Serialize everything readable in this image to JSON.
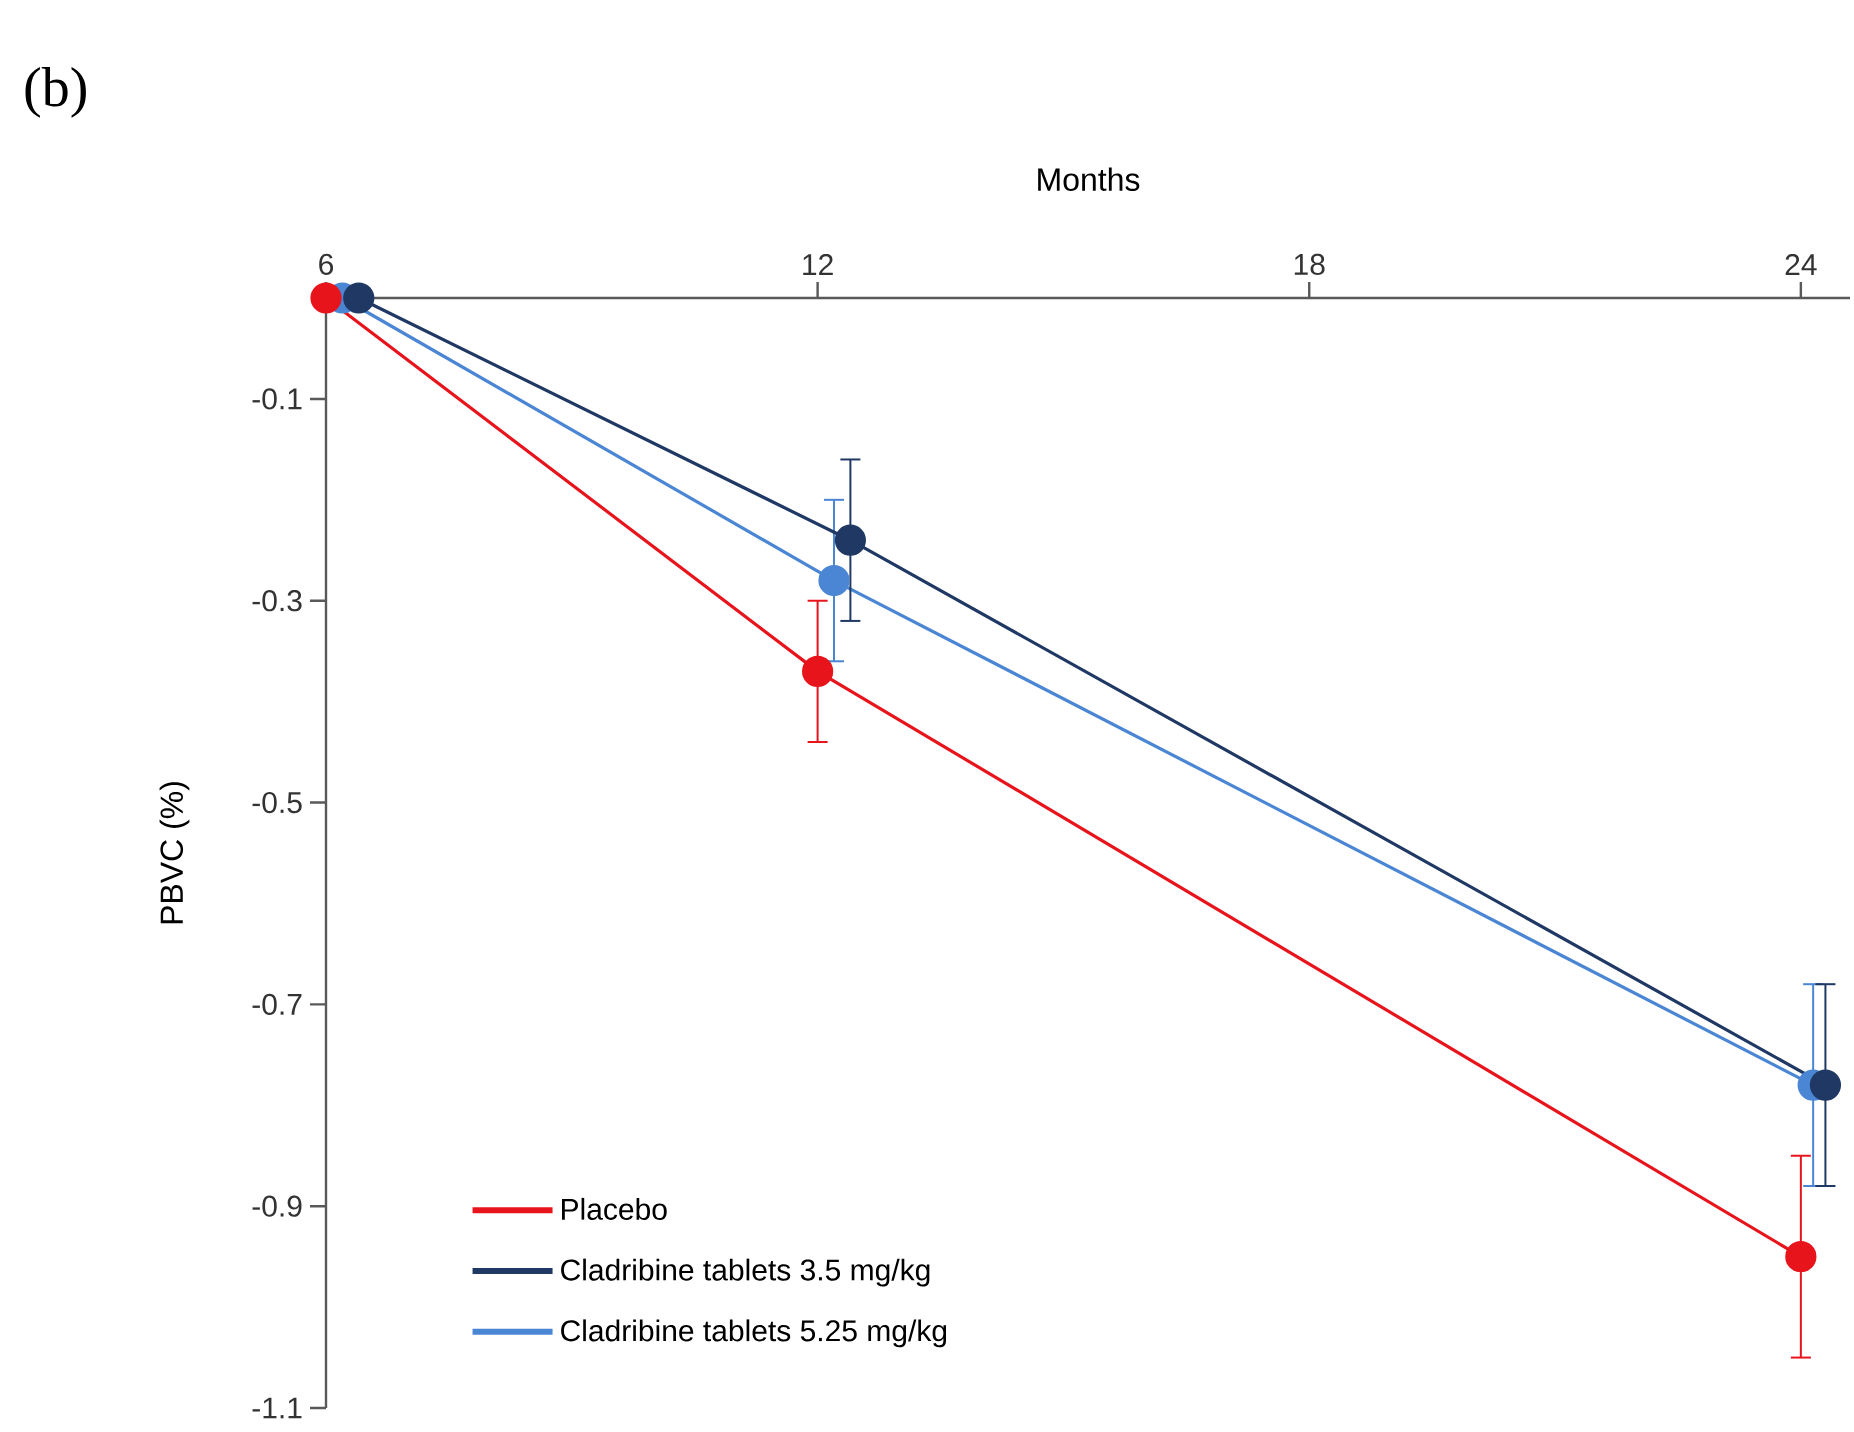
{
  "chart_data": {
    "type": "line",
    "xlabel": "Months",
    "ylabel": "PBVC (%)",
    "annotations": [
      "(b)"
    ],
    "xlim": [
      6,
      24.6
    ],
    "ylim": [
      -1.1,
      0
    ],
    "xticks": [
      6,
      12,
      18,
      24
    ],
    "yticks": [
      -0.1,
      -0.3,
      -0.5,
      -0.7,
      -0.9,
      -1.1
    ],
    "legend": "bottom left",
    "marker": "circle",
    "line_style": "solid",
    "grid": false,
    "series": [
      {
        "name": "Placebo",
        "color": "#e8141c",
        "x": [
          6,
          12,
          24
        ],
        "values": [
          0,
          -0.37,
          -0.95
        ],
        "errors": [
          null,
          0.07,
          0.1
        ]
      },
      {
        "name": "Cladribine tablets 3.5 mg/kg",
        "color": "#1f3864",
        "x": [
          6.4,
          12.4,
          24.3
        ],
        "values": [
          0,
          -0.24,
          -0.78
        ],
        "errors": [
          null,
          0.08,
          0.1
        ]
      },
      {
        "name": "Cladribine tablets 5.25 mg/kg",
        "color": "#4a86d4",
        "x": [
          6.2,
          12.2,
          24.15
        ],
        "values": [
          0,
          -0.28,
          -0.78
        ],
        "errors": [
          null,
          0.08,
          0.1
        ]
      }
    ]
  }
}
